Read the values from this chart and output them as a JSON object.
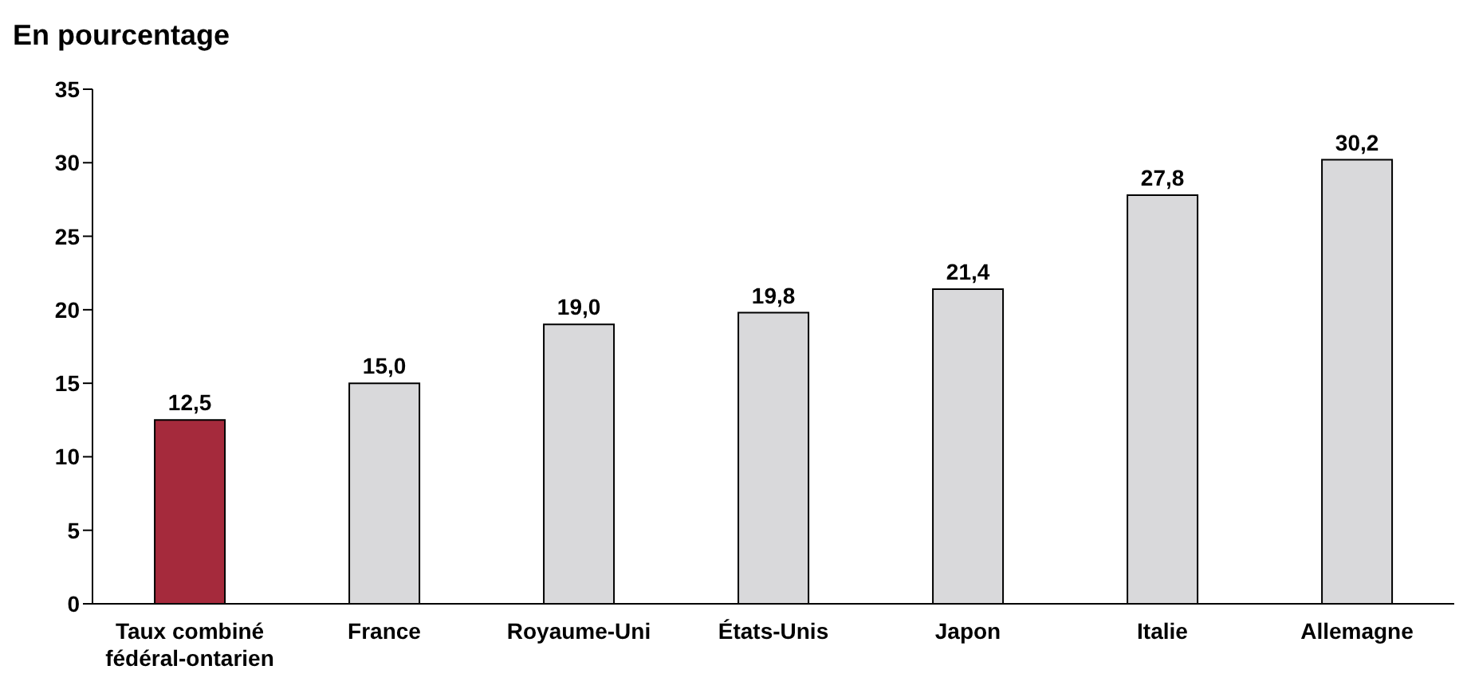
{
  "chart_data": {
    "type": "bar",
    "title": "En pourcentage",
    "categories": [
      "Taux combiné fédéral-ontarien",
      "France",
      "Royaume-Uni",
      "États-Unis",
      "Japon",
      "Italie",
      "Allemagne"
    ],
    "values": [
      12.5,
      15.0,
      19.0,
      19.8,
      21.4,
      27.8,
      30.2
    ],
    "colors": [
      "#a52a3c",
      "#d9d9db",
      "#d9d9db",
      "#d9d9db",
      "#d9d9db",
      "#d9d9db",
      "#d9d9db"
    ],
    "value_labels": [
      "12,5",
      "15,0",
      "19,0",
      "19,8",
      "21,4",
      "27,8",
      "30,2"
    ],
    "ylim": [
      0,
      35
    ],
    "yticks": [
      0,
      5,
      10,
      15,
      20,
      25,
      30,
      35
    ],
    "grid": false,
    "legend": false
  }
}
